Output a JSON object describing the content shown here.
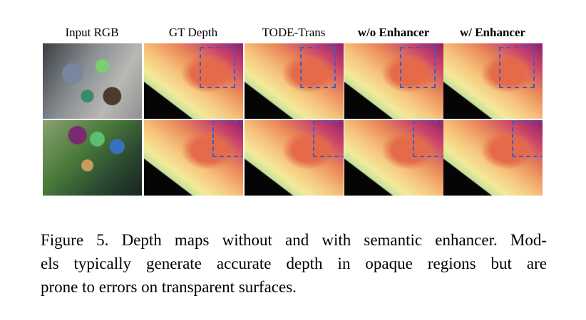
{
  "figure": {
    "headers": [
      "Input RGB",
      "GT Depth",
      "TODE-Trans",
      "w/o Enhancer",
      "w/ Enhancer"
    ],
    "caption_lines": [
      "Figure 5. Depth maps without and with semantic enhancer. Mod-",
      "els typically generate accurate depth in opaque regions but are",
      "prone to errors on transparent surfaces."
    ]
  }
}
